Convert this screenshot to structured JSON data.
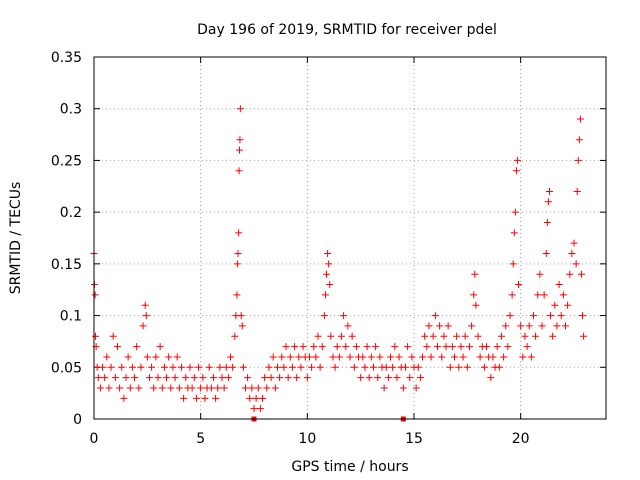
{
  "chart_data": {
    "type": "scatter",
    "title": "Day 196 of 2019, SRMTID for receiver pdel",
    "xlabel": "GPS time / hours",
    "ylabel": "SRMTID / TECUs",
    "xlim": [
      0,
      24
    ],
    "ylim": [
      0,
      0.35
    ],
    "xticks": [
      0,
      5,
      10,
      15,
      20
    ],
    "xtick_labels": [
      "0",
      "5",
      "10",
      "15",
      "20"
    ],
    "yticks": [
      0,
      0.05,
      0.1,
      0.15,
      0.2,
      0.25,
      0.3,
      0.35
    ],
    "ytick_labels": [
      "0",
      "0.05",
      "0.1",
      "0.15",
      "0.2",
      "0.25",
      "0.3",
      "0.35"
    ],
    "grid": true,
    "marker": "+",
    "color": "#ff0000",
    "series": [
      {
        "name": "SRMTID",
        "points": [
          [
            0.0,
            0.16
          ],
          [
            0.02,
            0.13
          ],
          [
            0.05,
            0.12
          ],
          [
            0.07,
            0.08
          ],
          [
            0.1,
            0.07
          ],
          [
            0.15,
            0.05
          ],
          [
            0.2,
            0.04
          ],
          [
            0.3,
            0.03
          ],
          [
            0.4,
            0.05
          ],
          [
            0.5,
            0.04
          ],
          [
            0.6,
            0.06
          ],
          [
            0.7,
            0.03
          ],
          [
            0.8,
            0.05
          ],
          [
            0.9,
            0.08
          ],
          [
            1.0,
            0.04
          ],
          [
            1.1,
            0.07
          ],
          [
            1.2,
            0.03
          ],
          [
            1.3,
            0.05
          ],
          [
            1.4,
            0.02
          ],
          [
            1.5,
            0.04
          ],
          [
            1.6,
            0.06
          ],
          [
            1.7,
            0.03
          ],
          [
            1.8,
            0.05
          ],
          [
            1.9,
            0.04
          ],
          [
            2.0,
            0.07
          ],
          [
            2.1,
            0.03
          ],
          [
            2.2,
            0.05
          ],
          [
            2.3,
            0.09
          ],
          [
            2.4,
            0.11
          ],
          [
            2.45,
            0.1
          ],
          [
            2.5,
            0.06
          ],
          [
            2.6,
            0.04
          ],
          [
            2.7,
            0.05
          ],
          [
            2.8,
            0.03
          ],
          [
            2.9,
            0.06
          ],
          [
            3.0,
            0.04
          ],
          [
            3.1,
            0.07
          ],
          [
            3.2,
            0.03
          ],
          [
            3.3,
            0.05
          ],
          [
            3.4,
            0.04
          ],
          [
            3.5,
            0.06
          ],
          [
            3.6,
            0.03
          ],
          [
            3.7,
            0.05
          ],
          [
            3.8,
            0.04
          ],
          [
            3.9,
            0.06
          ],
          [
            4.0,
            0.03
          ],
          [
            4.1,
            0.05
          ],
          [
            4.2,
            0.02
          ],
          [
            4.3,
            0.04
          ],
          [
            4.4,
            0.03
          ],
          [
            4.5,
            0.05
          ],
          [
            4.6,
            0.03
          ],
          [
            4.7,
            0.04
          ],
          [
            4.8,
            0.02
          ],
          [
            4.9,
            0.05
          ],
          [
            5.0,
            0.03
          ],
          [
            5.1,
            0.04
          ],
          [
            5.2,
            0.02
          ],
          [
            5.3,
            0.03
          ],
          [
            5.4,
            0.05
          ],
          [
            5.5,
            0.03
          ],
          [
            5.6,
            0.04
          ],
          [
            5.7,
            0.02
          ],
          [
            5.8,
            0.03
          ],
          [
            5.9,
            0.05
          ],
          [
            6.0,
            0.04
          ],
          [
            6.1,
            0.03
          ],
          [
            6.2,
            0.05
          ],
          [
            6.3,
            0.04
          ],
          [
            6.4,
            0.06
          ],
          [
            6.5,
            0.05
          ],
          [
            6.6,
            0.08
          ],
          [
            6.65,
            0.1
          ],
          [
            6.7,
            0.12
          ],
          [
            6.72,
            0.15
          ],
          [
            6.75,
            0.16
          ],
          [
            6.78,
            0.18
          ],
          [
            6.8,
            0.24
          ],
          [
            6.82,
            0.26
          ],
          [
            6.84,
            0.27
          ],
          [
            6.86,
            0.3
          ],
          [
            6.9,
            0.1
          ],
          [
            6.95,
            0.09
          ],
          [
            7.0,
            0.05
          ],
          [
            7.1,
            0.03
          ],
          [
            7.2,
            0.04
          ],
          [
            7.3,
            0.02
          ],
          [
            7.4,
            0.03
          ],
          [
            7.5,
            0.01
          ],
          [
            7.6,
            0.02
          ],
          [
            7.7,
            0.03
          ],
          [
            7.8,
            0.01
          ],
          [
            7.9,
            0.02
          ],
          [
            8.0,
            0.04
          ],
          [
            8.1,
            0.03
          ],
          [
            8.2,
            0.05
          ],
          [
            8.3,
            0.04
          ],
          [
            8.4,
            0.06
          ],
          [
            8.5,
            0.03
          ],
          [
            8.6,
            0.05
          ],
          [
            8.7,
            0.04
          ],
          [
            8.8,
            0.06
          ],
          [
            8.9,
            0.05
          ],
          [
            9.0,
            0.07
          ],
          [
            9.1,
            0.04
          ],
          [
            9.2,
            0.06
          ],
          [
            9.3,
            0.05
          ],
          [
            9.4,
            0.07
          ],
          [
            9.5,
            0.04
          ],
          [
            9.6,
            0.06
          ],
          [
            9.7,
            0.05
          ],
          [
            9.8,
            0.07
          ],
          [
            9.9,
            0.06
          ],
          [
            10.0,
            0.04
          ],
          [
            10.1,
            0.06
          ],
          [
            10.2,
            0.05
          ],
          [
            10.3,
            0.07
          ],
          [
            10.4,
            0.06
          ],
          [
            10.5,
            0.08
          ],
          [
            10.6,
            0.05
          ],
          [
            10.7,
            0.07
          ],
          [
            10.8,
            0.1
          ],
          [
            10.85,
            0.12
          ],
          [
            10.9,
            0.14
          ],
          [
            10.95,
            0.16
          ],
          [
            11.0,
            0.15
          ],
          [
            11.05,
            0.13
          ],
          [
            11.1,
            0.08
          ],
          [
            11.2,
            0.06
          ],
          [
            11.3,
            0.05
          ],
          [
            11.4,
            0.07
          ],
          [
            11.5,
            0.06
          ],
          [
            11.6,
            0.08
          ],
          [
            11.7,
            0.1
          ],
          [
            11.8,
            0.07
          ],
          [
            11.9,
            0.09
          ],
          [
            12.0,
            0.06
          ],
          [
            12.1,
            0.08
          ],
          [
            12.2,
            0.05
          ],
          [
            12.3,
            0.07
          ],
          [
            12.4,
            0.06
          ],
          [
            12.5,
            0.04
          ],
          [
            12.6,
            0.06
          ],
          [
            12.7,
            0.05
          ],
          [
            12.8,
            0.07
          ],
          [
            12.9,
            0.04
          ],
          [
            13.0,
            0.06
          ],
          [
            13.1,
            0.05
          ],
          [
            13.2,
            0.07
          ],
          [
            13.3,
            0.04
          ],
          [
            13.4,
            0.06
          ],
          [
            13.5,
            0.05
          ],
          [
            13.6,
            0.03
          ],
          [
            13.7,
            0.05
          ],
          [
            13.8,
            0.04
          ],
          [
            13.9,
            0.06
          ],
          [
            14.0,
            0.05
          ],
          [
            14.1,
            0.07
          ],
          [
            14.2,
            0.04
          ],
          [
            14.3,
            0.06
          ],
          [
            14.4,
            0.05
          ],
          [
            14.5,
            0.03
          ],
          [
            14.6,
            0.05
          ],
          [
            14.7,
            0.07
          ],
          [
            14.8,
            0.04
          ],
          [
            14.9,
            0.06
          ],
          [
            15.0,
            0.05
          ],
          [
            15.1,
            0.03
          ],
          [
            15.2,
            0.05
          ],
          [
            15.3,
            0.04
          ],
          [
            15.4,
            0.06
          ],
          [
            15.5,
            0.08
          ],
          [
            15.6,
            0.07
          ],
          [
            15.7,
            0.09
          ],
          [
            15.8,
            0.06
          ],
          [
            15.9,
            0.08
          ],
          [
            16.0,
            0.1
          ],
          [
            16.1,
            0.07
          ],
          [
            16.2,
            0.09
          ],
          [
            16.3,
            0.06
          ],
          [
            16.4,
            0.08
          ],
          [
            16.5,
            0.07
          ],
          [
            16.6,
            0.09
          ],
          [
            16.7,
            0.05
          ],
          [
            16.8,
            0.07
          ],
          [
            16.9,
            0.06
          ],
          [
            17.0,
            0.08
          ],
          [
            17.1,
            0.05
          ],
          [
            17.2,
            0.07
          ],
          [
            17.3,
            0.06
          ],
          [
            17.4,
            0.08
          ],
          [
            17.5,
            0.05
          ],
          [
            17.6,
            0.07
          ],
          [
            17.7,
            0.09
          ],
          [
            17.8,
            0.12
          ],
          [
            17.85,
            0.14
          ],
          [
            17.9,
            0.11
          ],
          [
            18.0,
            0.08
          ],
          [
            18.1,
            0.06
          ],
          [
            18.2,
            0.07
          ],
          [
            18.3,
            0.05
          ],
          [
            18.4,
            0.07
          ],
          [
            18.5,
            0.06
          ],
          [
            18.6,
            0.04
          ],
          [
            18.7,
            0.06
          ],
          [
            18.8,
            0.05
          ],
          [
            18.9,
            0.07
          ],
          [
            19.0,
            0.05
          ],
          [
            19.1,
            0.08
          ],
          [
            19.2,
            0.06
          ],
          [
            19.3,
            0.09
          ],
          [
            19.4,
            0.07
          ],
          [
            19.5,
            0.1
          ],
          [
            19.6,
            0.12
          ],
          [
            19.65,
            0.15
          ],
          [
            19.7,
            0.18
          ],
          [
            19.75,
            0.2
          ],
          [
            19.8,
            0.24
          ],
          [
            19.85,
            0.25
          ],
          [
            19.9,
            0.13
          ],
          [
            20.0,
            0.09
          ],
          [
            20.1,
            0.06
          ],
          [
            20.2,
            0.08
          ],
          [
            20.3,
            0.07
          ],
          [
            20.4,
            0.09
          ],
          [
            20.5,
            0.06
          ],
          [
            20.6,
            0.1
          ],
          [
            20.7,
            0.08
          ],
          [
            20.8,
            0.12
          ],
          [
            20.9,
            0.14
          ],
          [
            21.0,
            0.09
          ],
          [
            21.1,
            0.12
          ],
          [
            21.2,
            0.16
          ],
          [
            21.25,
            0.19
          ],
          [
            21.3,
            0.21
          ],
          [
            21.35,
            0.22
          ],
          [
            21.4,
            0.1
          ],
          [
            21.5,
            0.08
          ],
          [
            21.6,
            0.11
          ],
          [
            21.7,
            0.09
          ],
          [
            21.8,
            0.13
          ],
          [
            21.9,
            0.1
          ],
          [
            22.0,
            0.12
          ],
          [
            22.1,
            0.09
          ],
          [
            22.2,
            0.11
          ],
          [
            22.3,
            0.14
          ],
          [
            22.4,
            0.16
          ],
          [
            22.5,
            0.17
          ],
          [
            22.6,
            0.15
          ],
          [
            22.65,
            0.22
          ],
          [
            22.7,
            0.25
          ],
          [
            22.75,
            0.27
          ],
          [
            22.8,
            0.29
          ],
          [
            22.85,
            0.14
          ],
          [
            22.9,
            0.1
          ],
          [
            22.95,
            0.08
          ]
        ]
      },
      {
        "name": "SRMTID (zero values)",
        "marker": "square",
        "points": [
          [
            7.5,
            0.0
          ],
          [
            14.5,
            0.0
          ]
        ]
      }
    ]
  }
}
